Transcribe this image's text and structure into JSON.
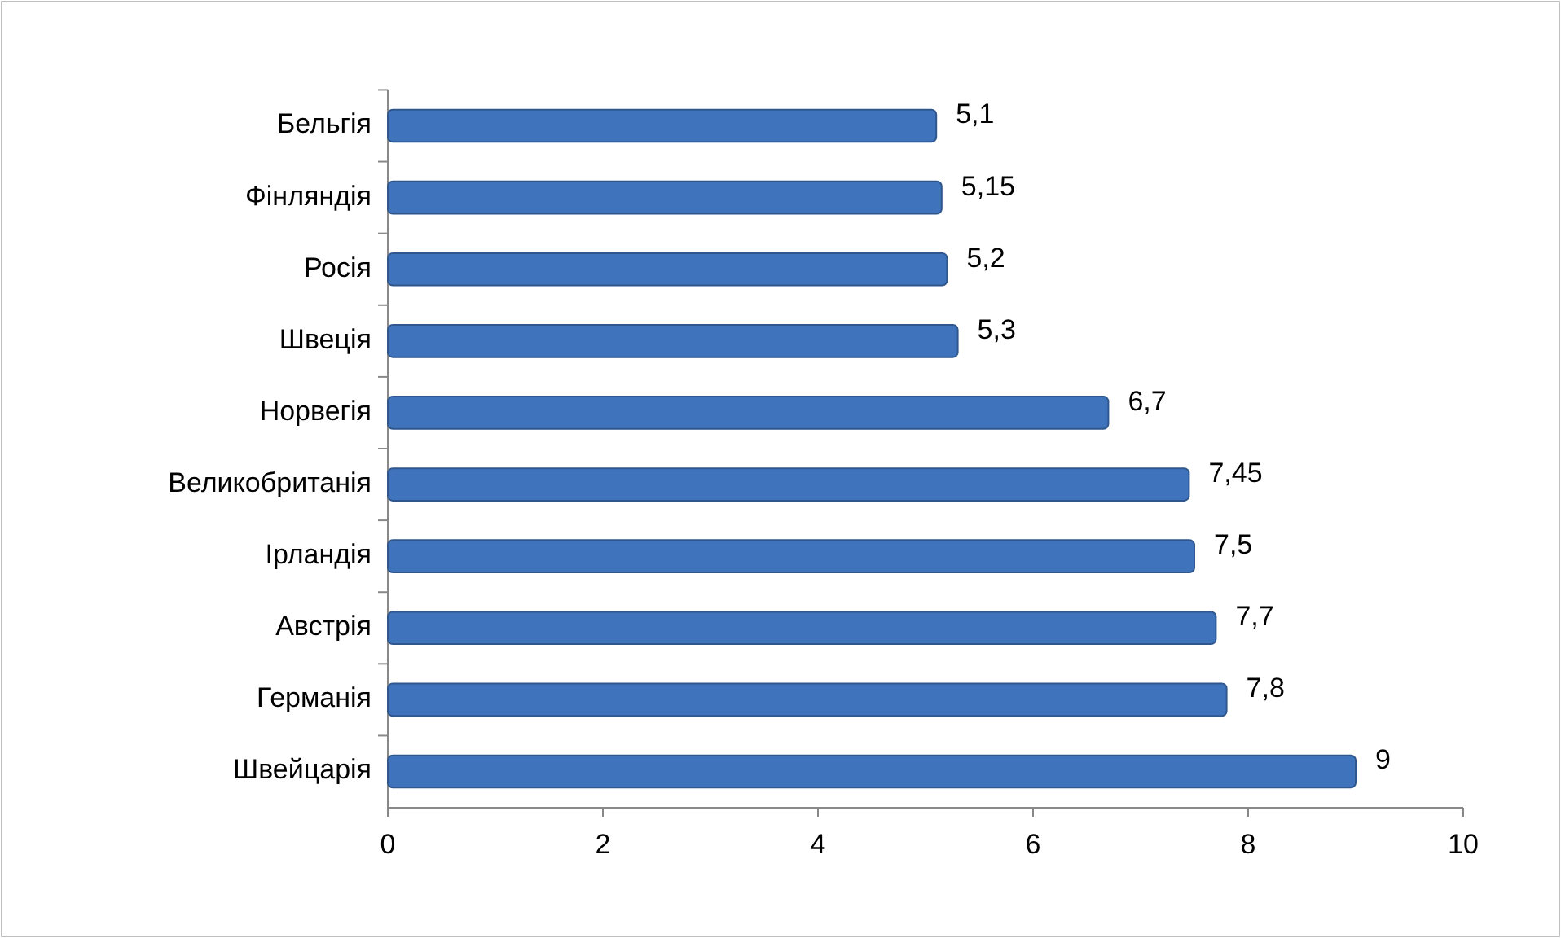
{
  "chart_data": {
    "type": "bar",
    "orientation": "horizontal",
    "categories": [
      "Бельгія",
      "Фінляндія",
      "Росія",
      "Швеція",
      "Норвегія",
      "Великобританія",
      "Ірландія",
      "Австрія",
      "Германія",
      "Швейцарія"
    ],
    "values": [
      5.1,
      5.15,
      5.2,
      5.3,
      6.7,
      7.45,
      7.5,
      7.7,
      7.8,
      9
    ],
    "value_labels": [
      "5,1",
      "5,15",
      "5,2",
      "5,3",
      "6,7",
      "7,45",
      "7,5",
      "7,7",
      "7,8",
      "9"
    ],
    "color": "#3f74bd",
    "xlim": [
      0,
      10
    ],
    "xticks": [
      0,
      2,
      4,
      6,
      8,
      10
    ],
    "grid": false
  }
}
